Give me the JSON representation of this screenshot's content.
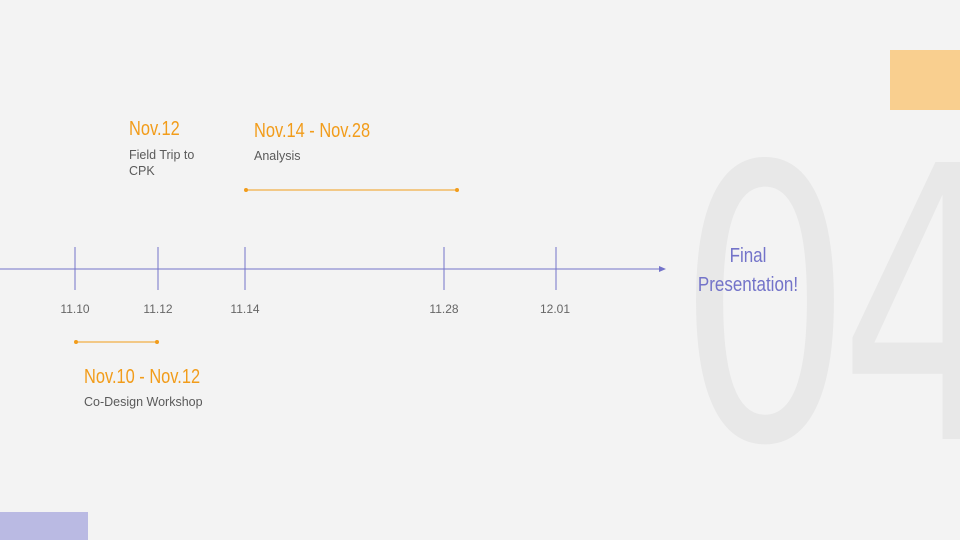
{
  "slide_number": "04",
  "colors": {
    "accent": "#f29c1a",
    "axis": "#7373c9",
    "background": "#f3f3f3"
  },
  "ticks": [
    {
      "label": "11.10"
    },
    {
      "label": "11.12"
    },
    {
      "label": "11.14"
    },
    {
      "label": "11.28"
    },
    {
      "label": "12.01"
    }
  ],
  "events": [
    {
      "title": "Nov.12",
      "description": "Field Trip to CPK"
    },
    {
      "title": "Nov.14 - Nov.28",
      "description": "Analysis"
    },
    {
      "title": "Nov.10 - Nov.12",
      "description": "Co-Design Workshop"
    }
  ],
  "final_label": "Final Presentation!"
}
